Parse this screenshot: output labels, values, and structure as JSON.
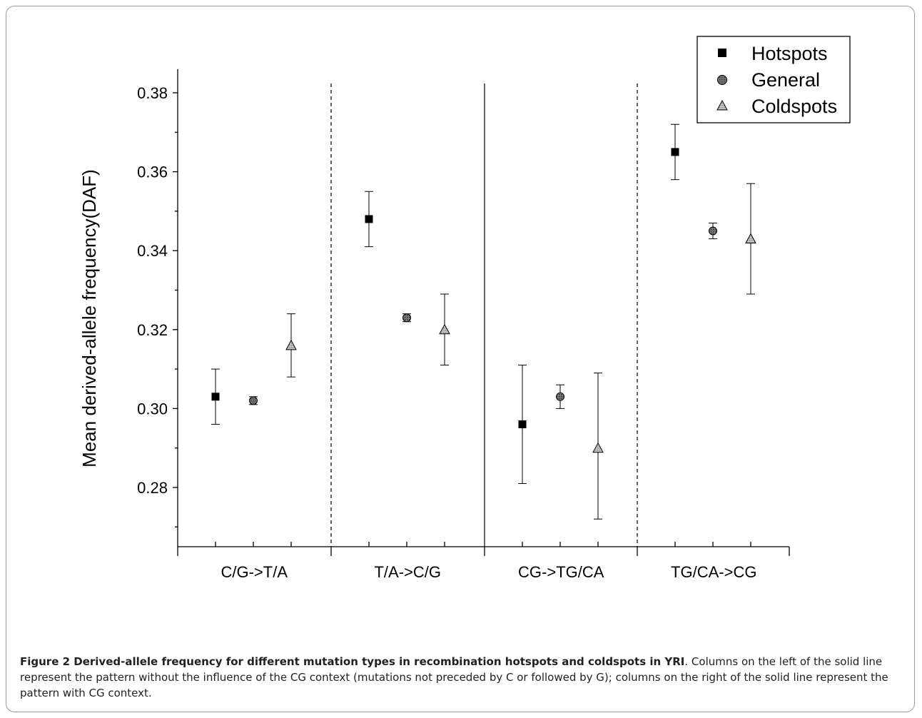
{
  "chart_data": {
    "type": "scatter",
    "categories": [
      "C/G->T/A",
      "T/A->C/G",
      "CG->TG/CA",
      "TG/CA->CG"
    ],
    "ylabel": "Mean derived-allele frequency(DAF)",
    "xlabel": "",
    "ylim": [
      0.264,
      0.386
    ],
    "yticks": [
      "0.28",
      "0.30",
      "0.32",
      "0.34",
      "0.36",
      "0.38"
    ],
    "grid": false,
    "legend_position": "top-right",
    "series": [
      {
        "name": "Hotspots",
        "marker": "square",
        "color": "#000000",
        "values": [
          0.303,
          0.348,
          0.296,
          0.365
        ],
        "err_low": [
          0.296,
          0.341,
          0.281,
          0.358
        ],
        "err_high": [
          0.31,
          0.355,
          0.311,
          0.372
        ]
      },
      {
        "name": "General",
        "marker": "circle",
        "color": "#666666",
        "values": [
          0.302,
          0.323,
          0.303,
          0.345
        ],
        "err_low": [
          0.301,
          0.322,
          0.3,
          0.343
        ],
        "err_high": [
          0.303,
          0.324,
          0.306,
          0.347
        ]
      },
      {
        "name": "Coldspots",
        "marker": "triangle",
        "color": "#b5b5b5",
        "values": [
          0.316,
          0.32,
          0.29,
          0.343
        ],
        "err_low": [
          0.308,
          0.311,
          0.272,
          0.329
        ],
        "err_high": [
          0.324,
          0.329,
          0.309,
          0.357
        ]
      }
    ],
    "separators": [
      {
        "after_group": 0,
        "style": "dashed"
      },
      {
        "after_group": 1,
        "style": "solid"
      },
      {
        "after_group": 2,
        "style": "dashed"
      }
    ]
  },
  "caption": {
    "bold": "Figure 2 Derived-allele frequency for different mutation types in recombination hotspots and coldspots in YRI",
    "text": ". Columns on the left of the solid line represent the pattern without the influence of the CG context (mutations not preceded by C or followed by G); columns on the right of the solid line represent the pattern with CG context."
  }
}
